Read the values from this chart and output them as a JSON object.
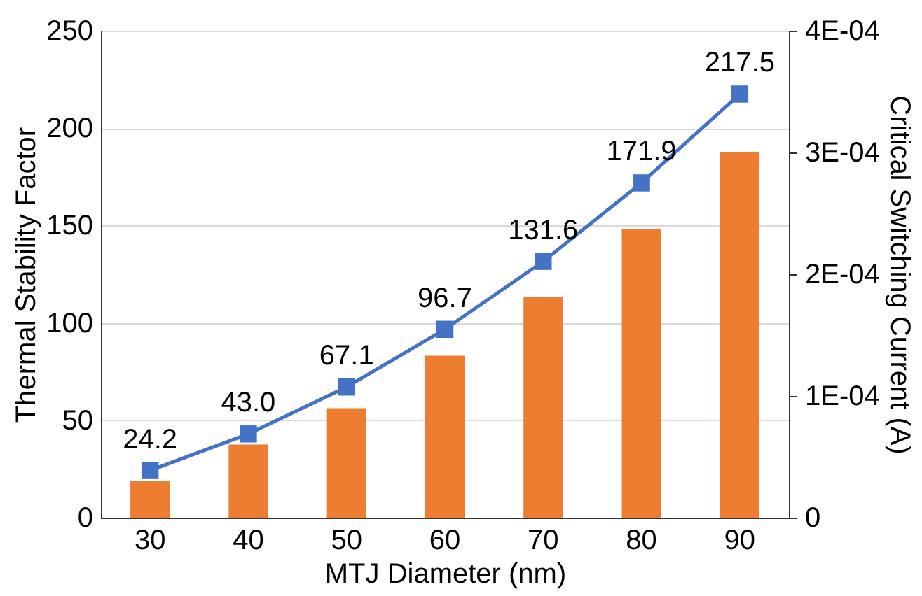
{
  "chart_data": {
    "type": "bar",
    "xlabel": "MTJ Diameter (nm)",
    "ylabel": "Thermal Stability Factor",
    "y2label": "Critical Switching Current (A)",
    "categories": [
      "30",
      "40",
      "50",
      "60",
      "70",
      "80",
      "90"
    ],
    "series": [
      {
        "axis": "y2",
        "color": "#ed7d31",
        "values": [
          3e-05,
          6e-05,
          9e-05,
          0.000133,
          0.000181,
          0.000237,
          0.0003
        ]
      },
      {
        "type": "line",
        "color": "#4472c4",
        "values": [
          24.2,
          43.0,
          67.1,
          96.7,
          131.6,
          171.9,
          217.5
        ],
        "value_labels": [
          "24.2",
          "43.0",
          "67.1",
          "96.7",
          "131.6",
          "171.9",
          "217.5"
        ]
      }
    ],
    "ylim": [
      0,
      250
    ],
    "yticks": [
      0,
      50,
      100,
      150,
      200,
      250
    ],
    "y2lim": [
      0,
      0.0004
    ],
    "y2ticks": [
      0,
      {
        "value": 0.0001,
        "label": "1E-04"
      },
      {
        "value": 0.0002,
        "label": "2E-04"
      },
      {
        "value": 0.0003,
        "label": "3E-04"
      },
      {
        "value": 0.0004,
        "label": "4E-04"
      }
    ],
    "grid": "y",
    "marker": "square",
    "line_style": "solid"
  }
}
